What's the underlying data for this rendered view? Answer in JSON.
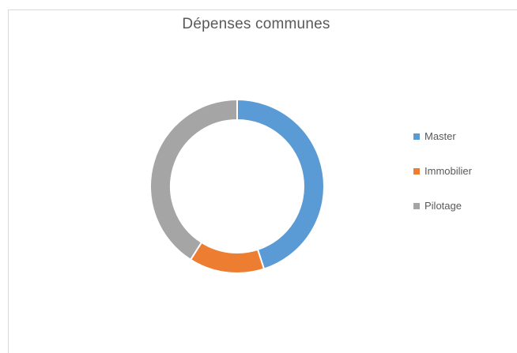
{
  "chart_data": {
    "type": "pie",
    "subtype": "donut",
    "title": "Dépenses communes",
    "categories": [
      "Master",
      "Immobilier",
      "Pilotage"
    ],
    "values": [
      45,
      14,
      41
    ],
    "colors": [
      "#5b9bd5",
      "#ed7d31",
      "#a5a5a5"
    ],
    "legend_position": "right",
    "start_angle_deg": 0
  }
}
